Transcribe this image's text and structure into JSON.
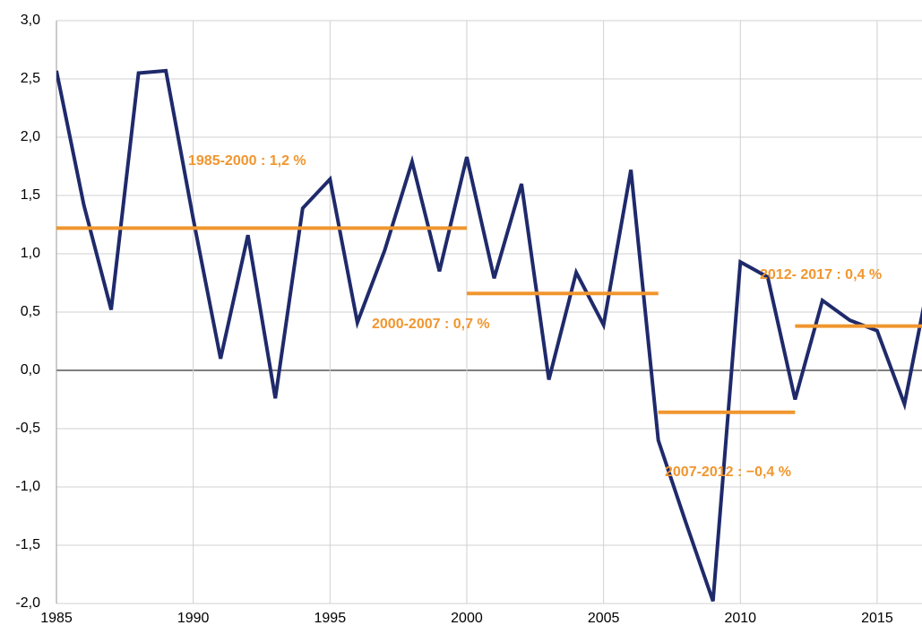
{
  "chart_data": {
    "type": "line",
    "x": [
      1985,
      1986,
      1987,
      1988,
      1989,
      1990,
      1991,
      1992,
      1993,
      1994,
      1995,
      1996,
      1997,
      1998,
      1999,
      2000,
      2001,
      2002,
      2003,
      2004,
      2005,
      2006,
      2007,
      2008,
      2009,
      2010,
      2011,
      2012,
      2013,
      2014,
      2015,
      2016,
      2017
    ],
    "series": [
      {
        "color": "#1f2a6b",
        "values": [
          2.57,
          1.42,
          0.52,
          2.55,
          2.57,
          1.3,
          0.1,
          1.16,
          -0.24,
          1.39,
          1.64,
          0.41,
          1.03,
          1.79,
          0.85,
          1.83,
          0.79,
          1.6,
          -0.08,
          0.84,
          0.39,
          1.72,
          -0.6,
          -1.3,
          -1.98,
          0.93,
          0.8,
          -0.25,
          0.6,
          0.43,
          0.34,
          -0.29,
          0.9
        ]
      }
    ],
    "averages": [
      {
        "x": [
          1985,
          2000
        ],
        "value": 1.22,
        "label": "1985-2000 : 1,2 %"
      },
      {
        "x": [
          2000,
          2007
        ],
        "value": 0.66,
        "label": "2000-2007 : 0,7 %"
      },
      {
        "x": [
          2007,
          2012
        ],
        "value": -0.36,
        "label": "2007-2012 : −0,4 %"
      },
      {
        "x": [
          2012,
          2017
        ],
        "value": 0.38,
        "label": "2012- 2017 : 0,4 %"
      }
    ],
    "average_color": "#f0962f",
    "xlim": [
      1985,
      2016.64
    ],
    "ylim": [
      -2,
      3
    ],
    "xticks": [
      1985,
      1990,
      1995,
      2000,
      2005,
      2010,
      2015
    ],
    "yticks": [
      {
        "value": -2,
        "label": "-2,0"
      },
      {
        "value": -1.5,
        "label": "-1,5"
      },
      {
        "value": -1,
        "label": "-1,0"
      },
      {
        "value": -0.5,
        "label": "-0,5"
      },
      {
        "value": 0,
        "label": "0,0"
      },
      {
        "value": 0.5,
        "label": "0,5"
      },
      {
        "value": 1,
        "label": "1,0"
      },
      {
        "value": 1.5,
        "label": "1,5"
      },
      {
        "value": 2,
        "label": "2,0"
      },
      {
        "value": 2.5,
        "label": "2,5"
      },
      {
        "value": 3,
        "label": "3,0"
      }
    ],
    "grid": true
  }
}
